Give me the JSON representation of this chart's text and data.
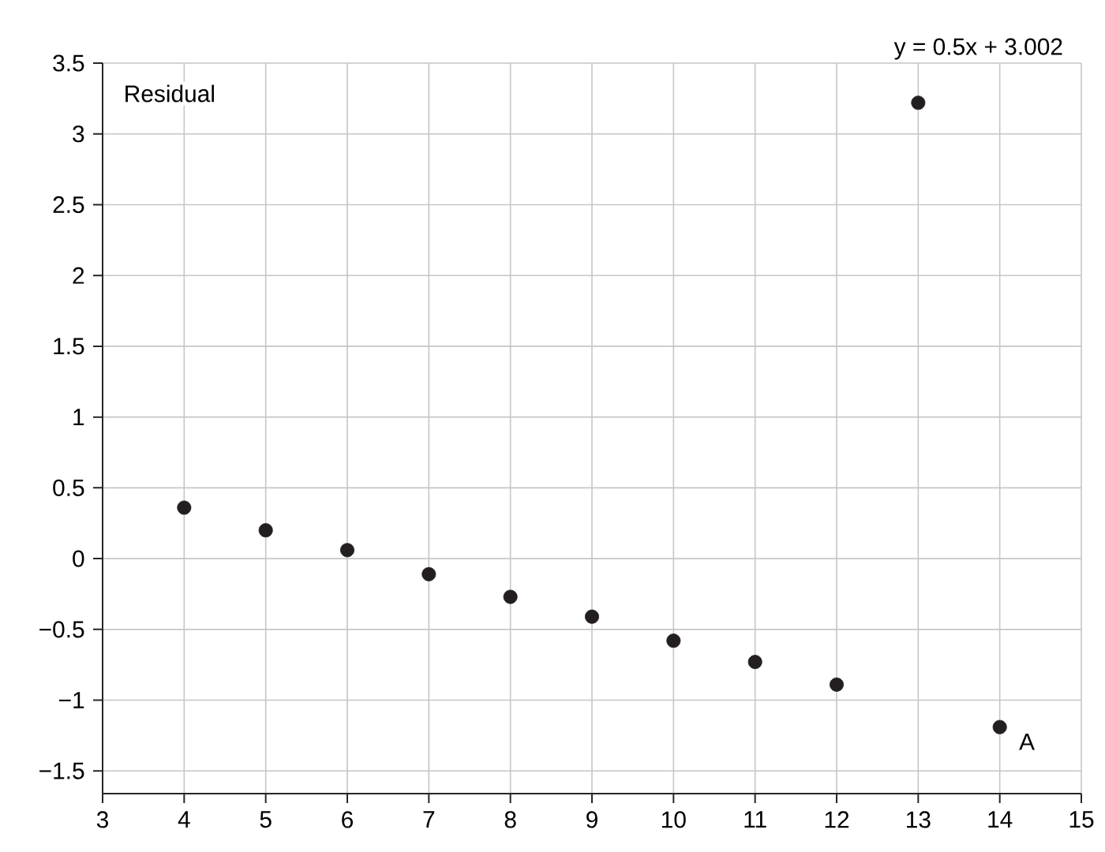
{
  "chart_data": {
    "type": "scatter",
    "ylabel": "Residual",
    "annotations": [
      "y = 0.5x + 3.002",
      {
        "text": "A",
        "x": 14,
        "y": -1.19
      }
    ],
    "x": [
      4,
      5,
      6,
      7,
      8,
      9,
      10,
      11,
      12,
      13,
      14
    ],
    "series": [
      {
        "color": "#231f20",
        "values": [
          0.36,
          0.2,
          0.06,
          -0.11,
          -0.27,
          -0.41,
          -0.58,
          -0.73,
          -0.89,
          3.22,
          -1.19
        ]
      }
    ],
    "xlim": [
      3,
      15
    ],
    "ylim": [
      -1.66,
      3.5
    ],
    "xticks": [
      3,
      4,
      5,
      6,
      7,
      8,
      9,
      10,
      11,
      12,
      13,
      14,
      15
    ],
    "yticks": [
      {
        "value": -1.5,
        "label": "−1.5"
      },
      {
        "value": -1,
        "label": "−1"
      },
      {
        "value": -0.5,
        "label": "−0.5"
      },
      0,
      0.5,
      1,
      1.5,
      2,
      2.5,
      3,
      3.5
    ],
    "grid": true,
    "marker": "circle"
  }
}
